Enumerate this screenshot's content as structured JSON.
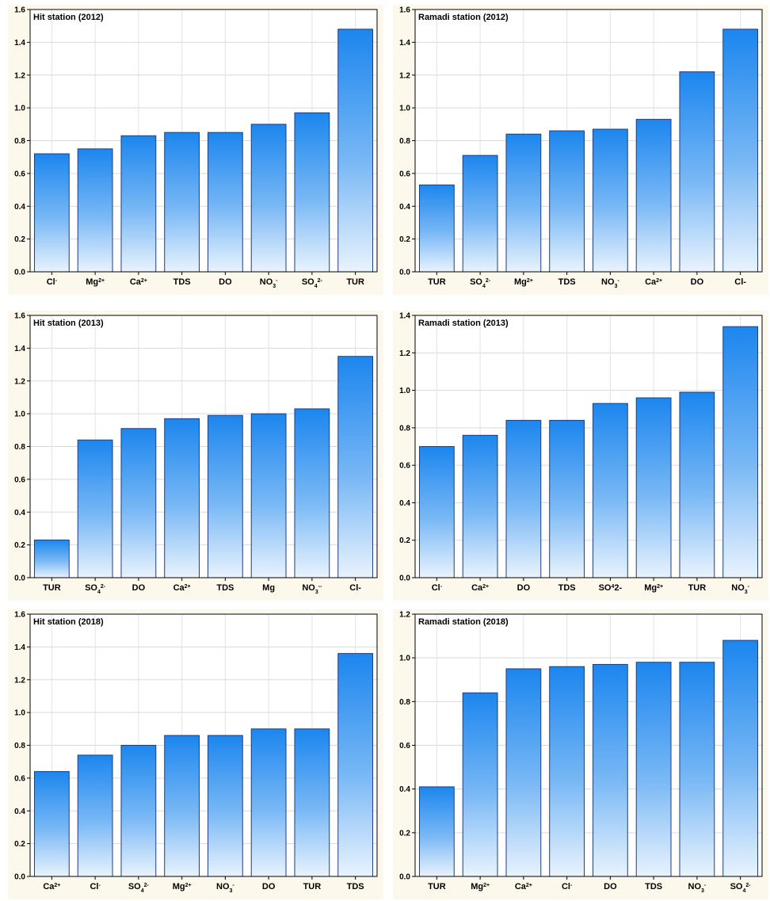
{
  "chart_data": [
    {
      "type": "bar",
      "title": "Hit station (2012)",
      "ylim": [
        0,
        1.6
      ],
      "yticks": [
        "0.0",
        "0.2",
        "0.4",
        "0.6",
        "0.8",
        "1.0",
        "1.2",
        "1.4",
        "1.6"
      ],
      "categories": [
        {
          "base": "Cl",
          "sup": "-"
        },
        {
          "base": "Mg",
          "sup": "2+"
        },
        {
          "base": "Ca",
          "sup": "2+"
        },
        {
          "base": "TDS"
        },
        {
          "base": "DO"
        },
        {
          "base": "NO",
          "sub": "3",
          "sup": "-"
        },
        {
          "base": "SO",
          "sub": "4",
          "sup": "2-"
        },
        {
          "base": "TUR"
        }
      ],
      "values": [
        0.72,
        0.75,
        0.83,
        0.85,
        0.85,
        0.9,
        0.97,
        1.48
      ],
      "grid": true
    },
    {
      "type": "bar",
      "title": "Ramadi station (2012)",
      "ylim": [
        0,
        1.6
      ],
      "yticks": [
        "0.0",
        "0.2",
        "0.4",
        "0.6",
        "0.8",
        "1.0",
        "1.2",
        "1.4",
        "1.6"
      ],
      "categories": [
        {
          "base": "TUR"
        },
        {
          "base": "SO",
          "sub": "4",
          "sup": "2-"
        },
        {
          "base": "Mg",
          "sup": "2+"
        },
        {
          "base": "TDS"
        },
        {
          "base": "NO",
          "sub": "3",
          "sup": "-"
        },
        {
          "base": "Ca",
          "sup": "2+"
        },
        {
          "base": "DO"
        },
        {
          "base": "Cl-"
        }
      ],
      "values": [
        0.53,
        0.71,
        0.84,
        0.86,
        0.87,
        0.93,
        1.22,
        1.48
      ],
      "grid": true
    },
    {
      "type": "bar",
      "title": "Hit station (2013)",
      "ylim": [
        0,
        1.6
      ],
      "yticks": [
        "0.0",
        "0.2",
        "0.4",
        "0.6",
        "0.8",
        "1.0",
        "1.2",
        "1.4",
        "1.6"
      ],
      "categories": [
        {
          "base": "TUR"
        },
        {
          "base": "SO",
          "sub": "4",
          "sup": "2-"
        },
        {
          "base": "DO"
        },
        {
          "base": "Ca",
          "sup": "2+"
        },
        {
          "base": "TDS"
        },
        {
          "base": "Mg"
        },
        {
          "base": "NO",
          "sub": "3",
          "sup": "--"
        },
        {
          "base": "Cl-"
        }
      ],
      "values": [
        0.23,
        0.84,
        0.91,
        0.97,
        0.99,
        1.0,
        1.03,
        1.35
      ],
      "grid": true
    },
    {
      "type": "bar",
      "title": "Ramadi station (2013)",
      "ylim": [
        0,
        1.4
      ],
      "yticks": [
        "0.0",
        "0.2",
        "0.4",
        "0.6",
        "0.8",
        "1.0",
        "1.2",
        "1.4"
      ],
      "categories": [
        {
          "base": "Cl",
          "sup": "-"
        },
        {
          "base": "Ca",
          "sup": "2+"
        },
        {
          "base": "DO"
        },
        {
          "base": "TDS"
        },
        {
          "base": "SO",
          "sup": "4",
          "tail": "2-"
        },
        {
          "base": "Mg",
          "sup": "2+"
        },
        {
          "base": "TUR"
        },
        {
          "base": "NO",
          "sub": "3",
          "sup": "-"
        }
      ],
      "values": [
        0.7,
        0.76,
        0.84,
        0.84,
        0.93,
        0.96,
        0.99,
        1.34
      ],
      "grid": true
    },
    {
      "type": "bar",
      "title": "Hit station (2018)",
      "ylim": [
        0,
        1.6
      ],
      "yticks": [
        "0.0",
        "0.2",
        "0.4",
        "0.6",
        "0.8",
        "1.0",
        "1.2",
        "1.4",
        "1.6"
      ],
      "categories": [
        {
          "base": "Ca",
          "sup": "2+"
        },
        {
          "base": "Cl",
          "sup": "-"
        },
        {
          "base": "SO",
          "sub": "4",
          "sup": "2-"
        },
        {
          "base": "Mg",
          "sup": "2+"
        },
        {
          "base": "NO",
          "sub": "3",
          "sup": "-"
        },
        {
          "base": "DO"
        },
        {
          "base": "TUR"
        },
        {
          "base": "TDS"
        }
      ],
      "values": [
        0.64,
        0.74,
        0.8,
        0.86,
        0.86,
        0.9,
        0.9,
        1.36
      ],
      "grid": true
    },
    {
      "type": "bar",
      "title": "Ramadi station (2018)",
      "ylim": [
        0,
        1.2
      ],
      "yticks": [
        "0.0",
        "0.2",
        "0.4",
        "0.6",
        "0.8",
        "1.0",
        "1.2"
      ],
      "categories": [
        {
          "base": "TUR"
        },
        {
          "base": "Mg",
          "sup": "2+"
        },
        {
          "base": "Ca",
          "sup": "2+"
        },
        {
          "base": "Cl",
          "sup": "-"
        },
        {
          "base": "DO"
        },
        {
          "base": "TDS"
        },
        {
          "base": "NO",
          "sub": "3",
          "sup": "-"
        },
        {
          "base": "SO",
          "sub": "4",
          "sup": "2-"
        }
      ],
      "values": [
        0.41,
        0.84,
        0.95,
        0.96,
        0.97,
        0.98,
        0.98,
        1.08
      ],
      "grid": true
    }
  ]
}
